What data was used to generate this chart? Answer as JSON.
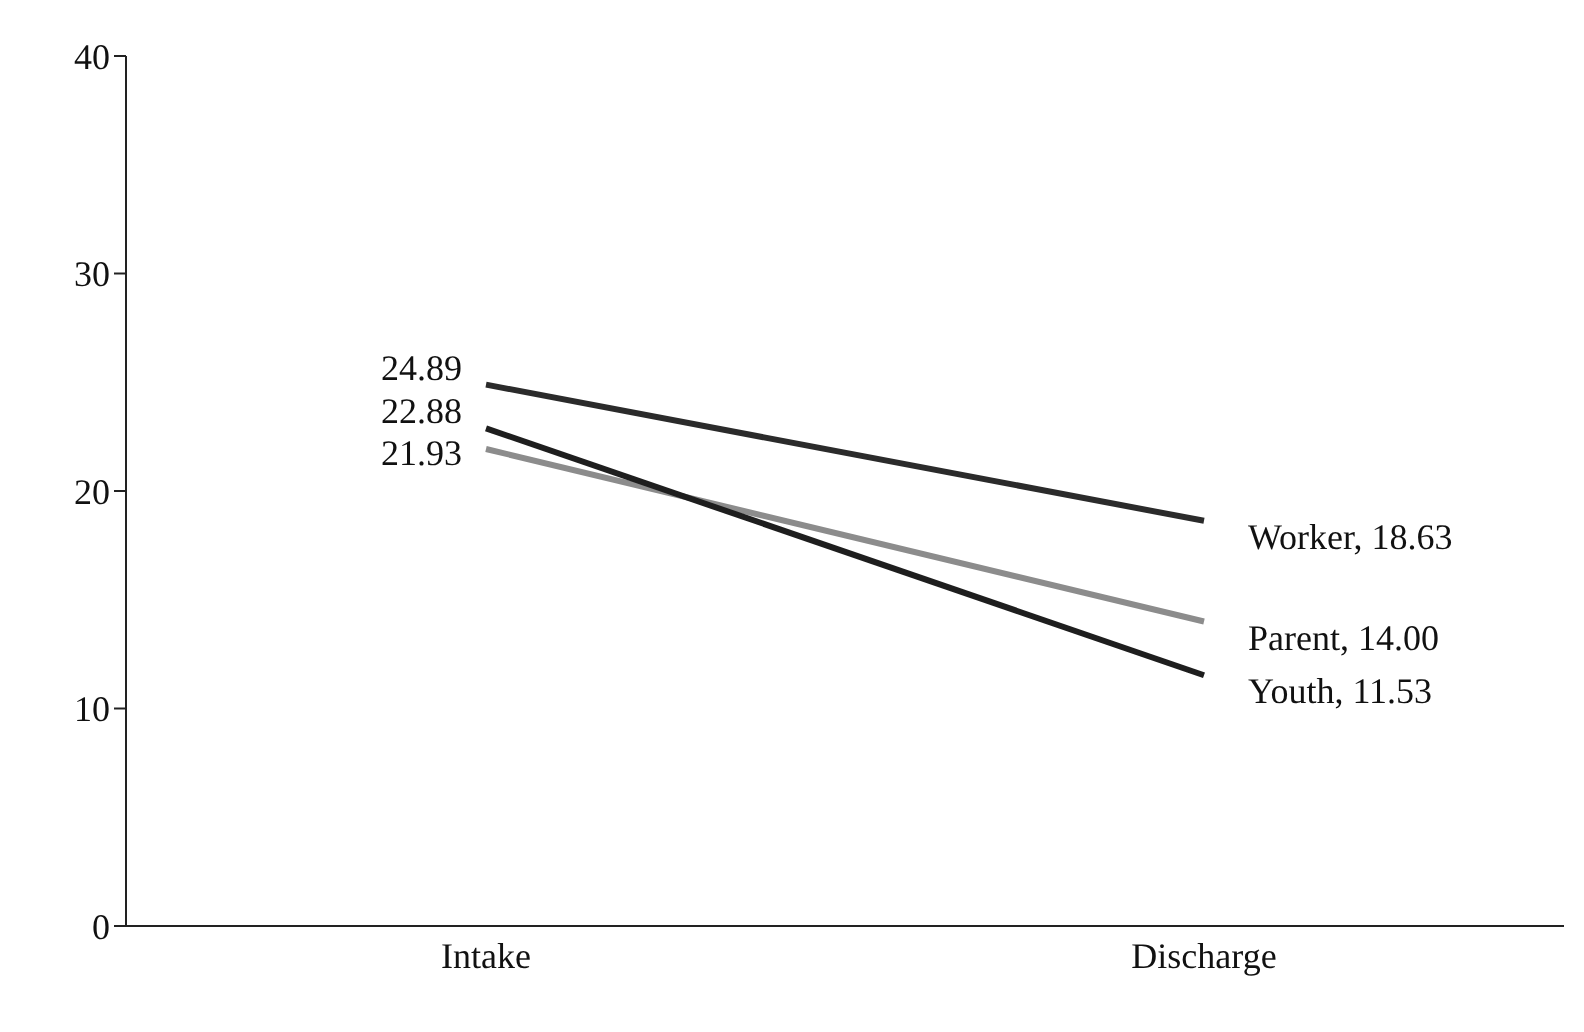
{
  "chart_data": {
    "type": "line",
    "categories": [
      "Intake",
      "Discharge"
    ],
    "series": [
      {
        "name": "Worker,",
        "color": "#2b2b2b",
        "values": [
          24.89,
          18.63
        ],
        "value_labels": [
          "24.89",
          "18.63"
        ]
      },
      {
        "name": "Parent,",
        "color": "#8c8c8c",
        "values": [
          21.93,
          14.0
        ],
        "value_labels": [
          "21.93",
          "14.00"
        ]
      },
      {
        "name": "Youth,",
        "color": "#1e1e1e",
        "values": [
          22.88,
          11.53
        ],
        "value_labels": [
          "22.88",
          "11.53"
        ]
      }
    ],
    "ylim": [
      0,
      40
    ],
    "yticks": [
      0,
      10,
      20,
      30,
      40
    ],
    "marker": "none",
    "line_style": "solid"
  }
}
